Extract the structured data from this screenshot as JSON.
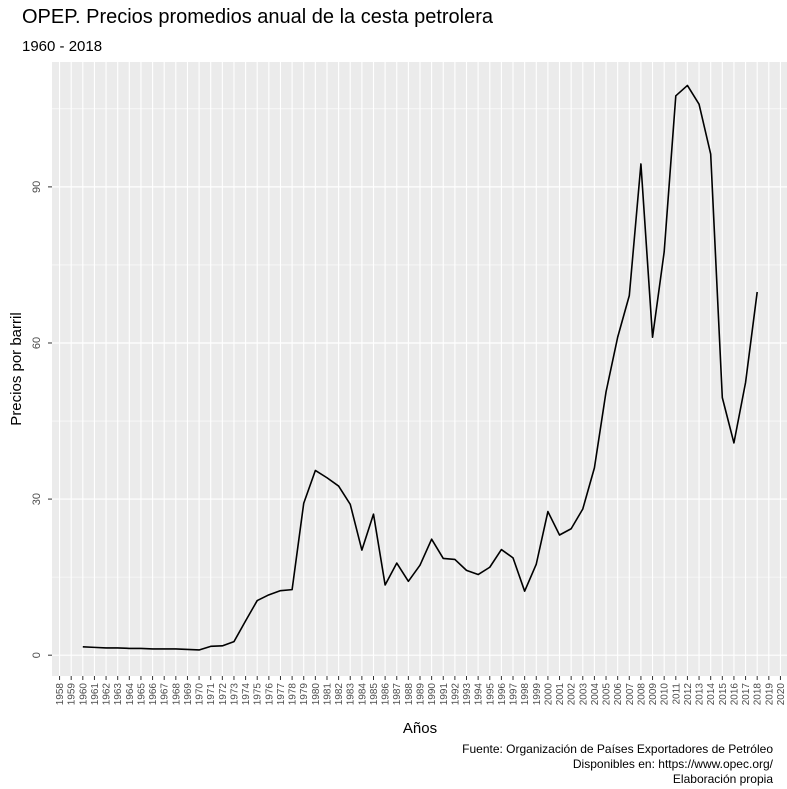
{
  "chart_data": {
    "type": "line",
    "title": "OPEP. Precios promedios anual de la cesta petrolera",
    "subtitle": "1960 - 2018",
    "xlabel": "Años",
    "ylabel": "Precios por barril",
    "xlim": [
      1957.35,
      2020.65
    ],
    "ylim": [
      -4.0,
      114.0
    ],
    "y_ticks": [
      0,
      30,
      60,
      90
    ],
    "x_ticks": [
      1958,
      1959,
      1960,
      1961,
      1962,
      1963,
      1964,
      1965,
      1966,
      1967,
      1968,
      1969,
      1970,
      1971,
      1972,
      1973,
      1974,
      1975,
      1976,
      1977,
      1978,
      1979,
      1980,
      1981,
      1982,
      1983,
      1984,
      1985,
      1986,
      1987,
      1988,
      1989,
      1990,
      1991,
      1992,
      1993,
      1994,
      1995,
      1996,
      1997,
      1998,
      1999,
      2000,
      2001,
      2002,
      2003,
      2004,
      2005,
      2006,
      2007,
      2008,
      2009,
      2010,
      2011,
      2012,
      2013,
      2014,
      2015,
      2016,
      2017,
      2018,
      2019,
      2020
    ],
    "grid": true,
    "line_color": "#000000",
    "panel_background": "#ebebeb",
    "x": [
      1960,
      1961,
      1962,
      1963,
      1964,
      1965,
      1966,
      1967,
      1968,
      1969,
      1970,
      1971,
      1972,
      1973,
      1974,
      1975,
      1976,
      1977,
      1978,
      1979,
      1980,
      1981,
      1982,
      1983,
      1984,
      1985,
      1986,
      1987,
      1988,
      1989,
      1990,
      1991,
      1992,
      1993,
      1994,
      1995,
      1996,
      1997,
      1998,
      1999,
      2000,
      2001,
      2002,
      2003,
      2004,
      2005,
      2006,
      2007,
      2008,
      2009,
      2010,
      2011,
      2012,
      2013,
      2014,
      2015,
      2016,
      2017,
      2018
    ],
    "y": [
      1.6,
      1.5,
      1.4,
      1.4,
      1.3,
      1.3,
      1.2,
      1.2,
      1.2,
      1.1,
      1.0,
      1.7,
      1.8,
      2.6,
      6.6,
      10.5,
      11.6,
      12.4,
      12.6,
      29.2,
      35.5,
      34.1,
      32.5,
      29.0,
      20.2,
      27.1,
      13.5,
      17.7,
      14.2,
      17.3,
      22.3,
      18.6,
      18.4,
      16.3,
      15.5,
      16.9,
      20.3,
      18.7,
      12.3,
      17.5,
      27.6,
      23.1,
      24.3,
      28.1,
      36.0,
      50.6,
      61.1,
      69.1,
      94.4,
      61.1,
      77.5,
      107.5,
      109.5,
      105.9,
      96.3,
      49.5,
      40.8,
      52.4,
      69.8
    ]
  },
  "captions": [
    "Fuente: Organización de Países Exportadores de Petróleo",
    "Disponibles en: https://www.opec.org/",
    "Elaboración propia"
  ]
}
